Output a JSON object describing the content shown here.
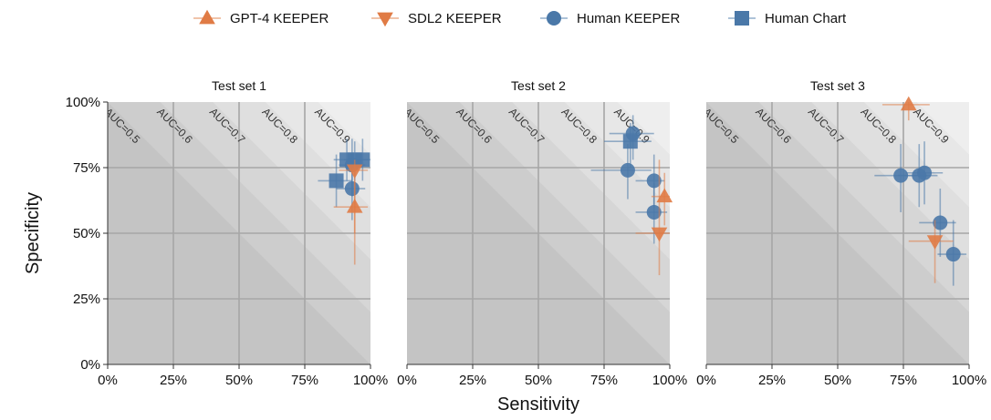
{
  "legend": [
    {
      "label": "GPT-4 KEEPER",
      "marker": "triangle-up",
      "color": "#e07b45"
    },
    {
      "label": "SDL2 KEEPER",
      "marker": "triangle-down",
      "color": "#e07b45"
    },
    {
      "label": "Human KEEPER",
      "marker": "circle",
      "color": "#4a78a8"
    },
    {
      "label": "Human Chart",
      "marker": "square",
      "color": "#4a78a8"
    }
  ],
  "xlabel": "Sensitivity",
  "ylabel": "Specificity",
  "tick_labels": [
    "0%",
    "25%",
    "50%",
    "75%",
    "100%"
  ],
  "auc_labels": [
    "AUC=0.5",
    "AUC=0.6",
    "AUC=0.7",
    "AUC=0.8",
    "AUC=0.9"
  ],
  "colors": {
    "orange": "#e07b45",
    "blue": "#4a78a8",
    "band_dark": "#c8c8c8",
    "band_light": "#ececec",
    "grid": "#a6a6a6"
  },
  "chart_data": [
    {
      "type": "scatter",
      "title": "Test set 1",
      "xlim": [
        0,
        1
      ],
      "ylim": [
        0,
        1
      ],
      "series": [
        {
          "name": "Human Chart",
          "points": [
            {
              "x": 0.87,
              "y": 0.7,
              "xerr": [
                0.8,
                0.93
              ],
              "yerr": [
                0.6,
                0.8
              ]
            },
            {
              "x": 0.91,
              "y": 0.78,
              "xerr": [
                0.86,
                0.96
              ],
              "yerr": [
                0.7,
                0.86
              ]
            },
            {
              "x": 0.94,
              "y": 0.78,
              "xerr": [
                0.9,
                0.99
              ],
              "yerr": [
                0.7,
                0.85
              ]
            },
            {
              "x": 0.97,
              "y": 0.78,
              "xerr": [
                0.93,
                1.0
              ],
              "yerr": [
                0.7,
                0.86
              ]
            }
          ]
        },
        {
          "name": "Human KEEPER",
          "points": [
            {
              "x": 0.93,
              "y": 0.67,
              "xerr": [
                0.87,
                0.98
              ],
              "yerr": [
                0.55,
                0.78
              ]
            },
            {
              "x": 0.93,
              "y": 0.76,
              "xerr": [
                0.88,
                0.98
              ],
              "yerr": [
                0.64,
                0.86
              ]
            }
          ]
        },
        {
          "name": "GPT-4 KEEPER",
          "points": [
            {
              "x": 0.94,
              "y": 0.6,
              "xerr": [
                0.86,
                0.99
              ],
              "yerr": [
                0.5,
                0.7
              ]
            }
          ]
        },
        {
          "name": "SDL2 KEEPER",
          "points": [
            {
              "x": 0.94,
              "y": 0.74,
              "xerr": [
                0.88,
                0.99
              ],
              "yerr": [
                0.38,
                0.78
              ]
            }
          ]
        }
      ]
    },
    {
      "type": "scatter",
      "title": "Test set 2",
      "xlim": [
        0,
        1
      ],
      "ylim": [
        0,
        1
      ],
      "series": [
        {
          "name": "Human Chart",
          "points": [
            {
              "x": 0.85,
              "y": 0.85,
              "xerr": [
                0.75,
                0.93
              ],
              "yerr": [
                0.75,
                0.92
              ]
            }
          ]
        },
        {
          "name": "Human KEEPER",
          "points": [
            {
              "x": 0.84,
              "y": 0.74,
              "xerr": [
                0.7,
                0.93
              ],
              "yerr": [
                0.63,
                0.84
              ]
            },
            {
              "x": 0.86,
              "y": 0.88,
              "xerr": [
                0.77,
                0.94
              ],
              "yerr": [
                0.78,
                0.95
              ]
            },
            {
              "x": 0.94,
              "y": 0.7,
              "xerr": [
                0.87,
                0.98
              ],
              "yerr": [
                0.6,
                0.8
              ]
            },
            {
              "x": 0.94,
              "y": 0.58,
              "xerr": [
                0.87,
                0.99
              ],
              "yerr": [
                0.46,
                0.69
              ]
            }
          ]
        },
        {
          "name": "GPT-4 KEEPER",
          "points": [
            {
              "x": 0.98,
              "y": 0.64,
              "xerr": [
                0.93,
                1.0
              ],
              "yerr": [
                0.53,
                0.73
              ]
            }
          ]
        },
        {
          "name": "SDL2 KEEPER",
          "points": [
            {
              "x": 0.96,
              "y": 0.5,
              "xerr": [
                0.87,
                1.0
              ],
              "yerr": [
                0.34,
                0.78
              ]
            }
          ]
        }
      ]
    },
    {
      "type": "scatter",
      "title": "Test set 3",
      "xlim": [
        0,
        1
      ],
      "ylim": [
        0,
        1
      ],
      "series": [
        {
          "name": "Human KEEPER",
          "points": [
            {
              "x": 0.74,
              "y": 0.72,
              "xerr": [
                0.64,
                0.84
              ],
              "yerr": [
                0.58,
                0.84
              ]
            },
            {
              "x": 0.81,
              "y": 0.72,
              "xerr": [
                0.73,
                0.88
              ],
              "yerr": [
                0.6,
                0.84
              ]
            },
            {
              "x": 0.83,
              "y": 0.73,
              "xerr": [
                0.76,
                0.9
              ],
              "yerr": [
                0.61,
                0.85
              ]
            },
            {
              "x": 0.89,
              "y": 0.54,
              "xerr": [
                0.81,
                0.95
              ],
              "yerr": [
                0.41,
                0.67
              ]
            },
            {
              "x": 0.94,
              "y": 0.42,
              "xerr": [
                0.88,
                0.99
              ],
              "yerr": [
                0.3,
                0.55
              ]
            }
          ]
        },
        {
          "name": "GPT-4 KEEPER",
          "points": [
            {
              "x": 0.77,
              "y": 0.99,
              "xerr": [
                0.67,
                0.85
              ],
              "yerr": [
                0.93,
                1.0
              ]
            }
          ]
        },
        {
          "name": "SDL2 KEEPER",
          "points": [
            {
              "x": 0.87,
              "y": 0.47,
              "xerr": [
                0.77,
                0.94
              ],
              "yerr": [
                0.31,
                0.55
              ]
            }
          ]
        }
      ]
    }
  ]
}
